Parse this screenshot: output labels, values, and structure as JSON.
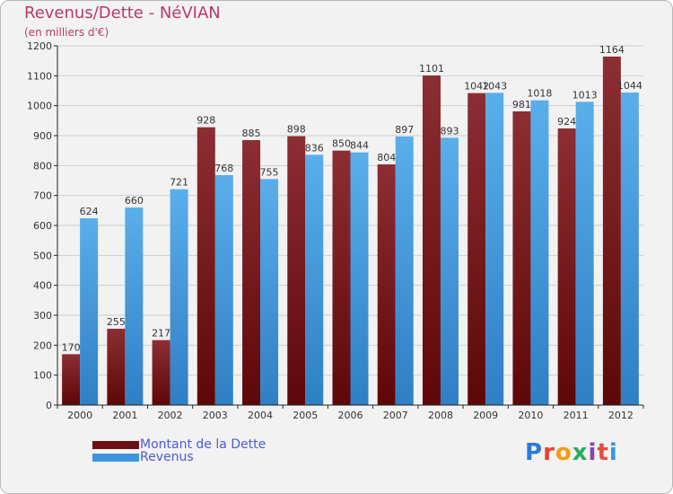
{
  "title": "Revenus/Dette - NéVIAN",
  "subtitle": "(en milliers d'€)",
  "logo_text": "Proxiti",
  "colors": {
    "debt": "#6b1116",
    "revenue": "#3d94de",
    "grid": "#cfcfcf",
    "axis": "#222222",
    "title": "#b73a6e",
    "legend_text": "#4a5bd4"
  },
  "chart_data": {
    "type": "bar",
    "title": "Revenus/Dette - NéVIAN",
    "subtitle": "(en milliers d'€)",
    "xlabel": "",
    "ylabel": "",
    "ylim": [
      0,
      1200
    ],
    "yticks": [
      0,
      100,
      200,
      300,
      400,
      500,
      600,
      700,
      800,
      900,
      1000,
      1100,
      1200
    ],
    "grid": true,
    "legend_position": "bottom-left",
    "categories": [
      "2000",
      "2001",
      "2002",
      "2003",
      "2004",
      "2005",
      "2006",
      "2007",
      "2008",
      "2009",
      "2010",
      "2011",
      "2012"
    ],
    "series": [
      {
        "name": "Montant de la Dette",
        "values": [
          170,
          255,
          217,
          928,
          885,
          898,
          850,
          804,
          1101,
          1042,
          981,
          924,
          1164
        ]
      },
      {
        "name": "Revenus",
        "values": [
          624,
          660,
          721,
          768,
          755,
          836,
          844,
          897,
          893,
          1043,
          1018,
          1013,
          1044
        ]
      }
    ]
  }
}
